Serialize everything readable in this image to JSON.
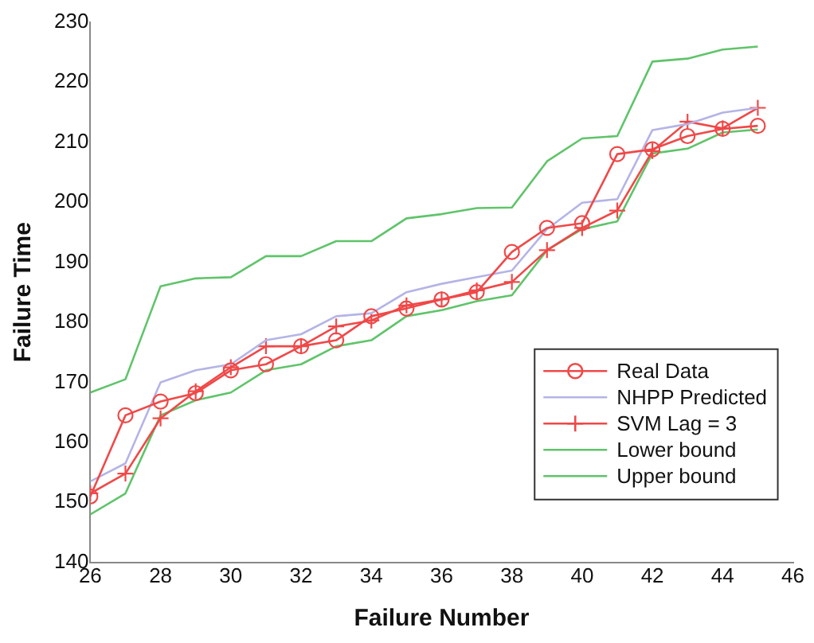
{
  "chart_data": {
    "type": "line",
    "xlabel": "Failure Number",
    "ylabel": "Failure Time",
    "x": [
      26,
      27,
      28,
      29,
      30,
      31,
      32,
      33,
      34,
      35,
      36,
      37,
      38,
      39,
      40,
      41,
      42,
      43,
      44,
      45
    ],
    "xlim": [
      26,
      46
    ],
    "xticks": [
      26,
      28,
      30,
      32,
      34,
      36,
      38,
      40,
      42,
      44,
      46
    ],
    "ylim": [
      140,
      230
    ],
    "yticks": [
      140,
      150,
      160,
      170,
      180,
      190,
      200,
      210,
      220,
      230
    ],
    "grid": false,
    "legend": "bottom right",
    "line_style": "solid",
    "series": [
      {
        "name": "Real Data",
        "color": "#f04848",
        "marker": "circle",
        "values": [
          151,
          164.5,
          166.8,
          168.2,
          172,
          173,
          176,
          177,
          181,
          182.3,
          183.8,
          185,
          191.7,
          195.7,
          196.5,
          208,
          208.8,
          211,
          212.2,
          212.7
        ]
      },
      {
        "name": "NHPP Predicted",
        "color": "#b4b4e6",
        "marker": "none",
        "values": [
          153.5,
          156.5,
          170,
          172,
          173,
          177,
          178,
          181,
          181.5,
          185,
          186.4,
          187.5,
          188.6,
          195.5,
          199.9,
          200.5,
          212,
          213,
          214.9,
          215.7
        ]
      },
      {
        "name": "SVM Lag = 3",
        "color": "#f04848",
        "marker": "cross",
        "values": [
          151.5,
          154.8,
          164,
          168.5,
          172.5,
          176,
          176,
          179.3,
          180.3,
          182.8,
          183.8,
          185.3,
          186.7,
          192,
          195.7,
          198.6,
          208.5,
          213.4,
          212.3,
          215.7
        ]
      },
      {
        "name": "Lower bound",
        "color": "#5fc46a",
        "marker": "none",
        "values": [
          148,
          151.5,
          164.5,
          167,
          168.3,
          172,
          173,
          176,
          177,
          181,
          182,
          183.5,
          184.5,
          192,
          195.5,
          196.8,
          208.1,
          208.9,
          211.6,
          212.1
        ]
      },
      {
        "name": "Upper bound",
        "color": "#5fc46a",
        "marker": "none",
        "values": [
          168.3,
          170.5,
          186,
          187.3,
          187.5,
          191,
          191,
          193.5,
          193.5,
          197.3,
          198,
          199,
          199.1,
          206.8,
          210.6,
          211,
          223.4,
          223.9,
          225.4,
          225.9
        ]
      }
    ]
  }
}
